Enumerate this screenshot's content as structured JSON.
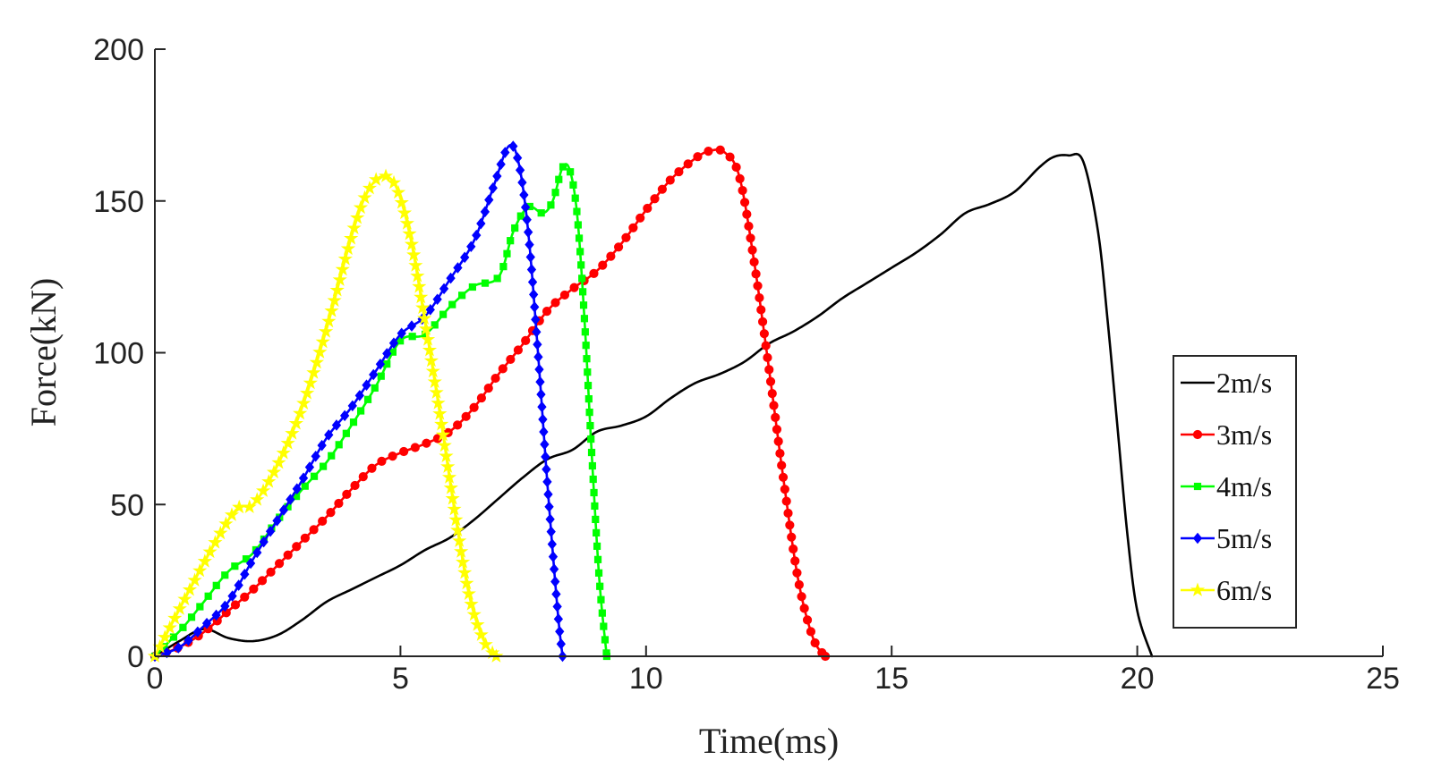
{
  "chart_data": {
    "type": "line",
    "title": "",
    "xlabel": "Time(ms)",
    "ylabel": "Force(kN)",
    "xlim": [
      0,
      25
    ],
    "ylim": [
      0,
      200
    ],
    "xticks": [
      0,
      5,
      10,
      15,
      20,
      25
    ],
    "yticks": [
      0,
      50,
      100,
      150,
      200
    ],
    "xtick_labels": [
      "0",
      "5",
      "10",
      "15",
      "20",
      "25"
    ],
    "ytick_labels": [
      "0",
      "50",
      "100",
      "150",
      "200"
    ],
    "grid": false,
    "legend_position": "right-center",
    "series": [
      {
        "name": "2m/s",
        "color": "#000000",
        "marker": "none",
        "x": [
          0,
          0.5,
          1.0,
          1.5,
          2.0,
          2.5,
          3.0,
          3.5,
          4.0,
          4.5,
          5.0,
          5.5,
          6.0,
          6.5,
          7.0,
          7.5,
          8.0,
          8.5,
          9.0,
          9.5,
          10.0,
          10.5,
          11.0,
          11.5,
          12.0,
          12.5,
          13.0,
          13.5,
          14.0,
          14.5,
          15.0,
          15.5,
          16.0,
          16.5,
          17.0,
          17.5,
          18.0,
          18.3,
          18.6,
          18.9,
          19.2,
          19.4,
          19.6,
          19.8,
          20.0,
          20.3
        ],
        "y": [
          0,
          5,
          9,
          6,
          5,
          7,
          12,
          18,
          22,
          26,
          30,
          35,
          39,
          45,
          52,
          59,
          65,
          68,
          74,
          76,
          79,
          85,
          90,
          93,
          97,
          103,
          107,
          112,
          118,
          123,
          128,
          133,
          139,
          146,
          149,
          153,
          161,
          164.5,
          165,
          163,
          140,
          110,
          75,
          40,
          15,
          0
        ]
      },
      {
        "name": "3m/s",
        "color": "#ff0000",
        "marker": "circle",
        "x": [
          0,
          0.5,
          1.0,
          1.5,
          2.0,
          2.5,
          3.0,
          3.5,
          4.0,
          4.5,
          5.0,
          5.5,
          6.0,
          6.5,
          7.0,
          7.5,
          8.0,
          8.5,
          9.0,
          9.5,
          10.0,
          10.5,
          11.0,
          11.3,
          11.6,
          11.9,
          12.2,
          12.5,
          12.8,
          13.1,
          13.4,
          13.65
        ],
        "y": [
          0,
          3,
          8,
          15,
          22,
          30,
          38,
          46,
          55,
          63,
          67,
          70,
          74,
          82,
          93,
          103,
          114,
          121,
          127,
          136,
          147,
          157,
          164,
          166.5,
          166,
          158,
          130,
          95,
          58,
          25,
          6,
          0
        ]
      },
      {
        "name": "4m/s",
        "color": "#00ff00",
        "marker": "square",
        "x": [
          0,
          0.3,
          0.6,
          1.0,
          1.5,
          2.0,
          2.5,
          3.0,
          3.5,
          4.0,
          4.5,
          5.0,
          5.5,
          6.0,
          6.5,
          7.0,
          7.3,
          7.6,
          7.9,
          8.1,
          8.3,
          8.45,
          8.6,
          8.75,
          8.9,
          9.05,
          9.2
        ],
        "y": [
          0,
          5,
          10,
          18,
          28,
          34,
          45,
          55,
          64,
          76,
          89,
          104,
          106,
          115,
          122,
          125,
          140,
          148,
          146,
          150,
          161,
          160,
          145,
          110,
          65,
          25,
          0
        ]
      },
      {
        "name": "5m/s",
        "color": "#0000ff",
        "marker": "diamond",
        "x": [
          0,
          0.5,
          1.0,
          1.5,
          2.0,
          2.5,
          3.0,
          3.5,
          4.0,
          4.5,
          5.0,
          5.5,
          6.0,
          6.5,
          6.9,
          7.2,
          7.4,
          7.6,
          7.8,
          8.0,
          8.2,
          8.3
        ],
        "y": [
          0,
          3,
          10,
          18,
          32,
          45,
          58,
          72,
          82,
          94,
          106,
          112,
          124,
          137,
          155,
          168,
          163,
          140,
          100,
          55,
          15,
          0
        ]
      },
      {
        "name": "6m/s",
        "color": "#ffff00",
        "marker": "star",
        "x": [
          0,
          1.5,
          2.0,
          2.5,
          3.0,
          3.5,
          4.0,
          4.3,
          4.6,
          4.9,
          5.2,
          5.5,
          5.8,
          6.1,
          6.4,
          6.7,
          6.95
        ],
        "y": [
          0,
          45,
          50,
          63,
          82,
          108,
          138,
          152,
          158,
          155,
          138,
          110,
          80,
          48,
          20,
          5,
          0
        ]
      }
    ]
  }
}
